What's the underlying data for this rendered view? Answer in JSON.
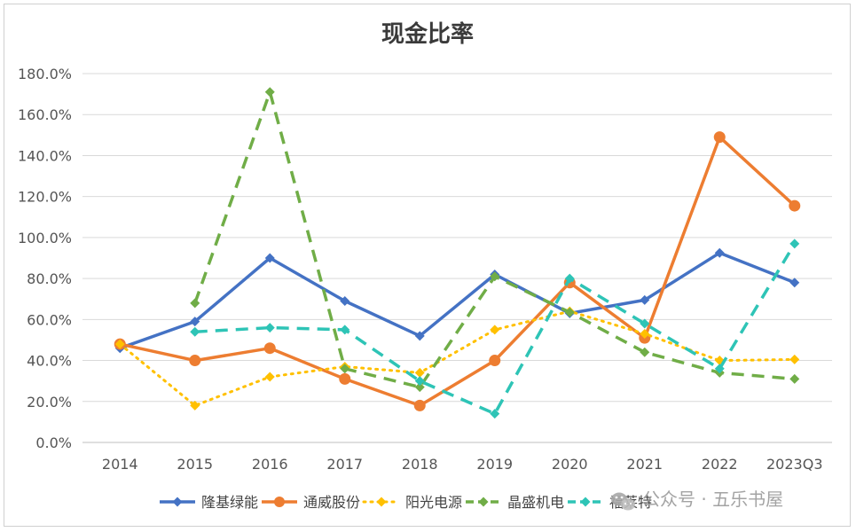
{
  "chart_data": {
    "type": "line",
    "title": "现金比率",
    "xlabel": "",
    "ylabel": "",
    "categories": [
      "2014",
      "2015",
      "2016",
      "2017",
      "2018",
      "2019",
      "2020",
      "2021",
      "2022",
      "2023Q3"
    ],
    "ylim": [
      0,
      180
    ],
    "yticks": [
      "0.0%",
      "20.0%",
      "40.0%",
      "60.0%",
      "80.0%",
      "100.0%",
      "120.0%",
      "140.0%",
      "160.0%",
      "180.0%"
    ],
    "grid": true,
    "legend_position": "bottom",
    "series": [
      {
        "name": "隆基绿能",
        "color": "#4472C4",
        "style": "solid",
        "marker": "diamond",
        "values": [
          46,
          59,
          90,
          69,
          52,
          82,
          63,
          69.5,
          92.5,
          78
        ]
      },
      {
        "name": "通威股份",
        "color": "#ED7D31",
        "style": "solid",
        "marker": "circle",
        "values": [
          48,
          40,
          46,
          31,
          18,
          40,
          78,
          51,
          149,
          115.5
        ]
      },
      {
        "name": "阳光电源",
        "color": "#FFC000",
        "style": "dotted",
        "marker": "diamond",
        "values": [
          48,
          18,
          32,
          37,
          34,
          55,
          64,
          53,
          40,
          40.5
        ]
      },
      {
        "name": "晶盛机电",
        "color": "#70AD47",
        "style": "dashed",
        "marker": "diamond",
        "values": [
          null,
          68,
          171,
          36,
          27,
          81,
          63.5,
          44,
          34,
          31
        ]
      },
      {
        "name": "福莱特",
        "color": "#2EC4B6",
        "style": "dashed",
        "marker": "diamond",
        "values": [
          null,
          54,
          56,
          55,
          30,
          14,
          80,
          58,
          36,
          97
        ]
      }
    ]
  },
  "watermark": {
    "text": "公众号 · 五乐书屋",
    "icon": "wechat-icon"
  }
}
